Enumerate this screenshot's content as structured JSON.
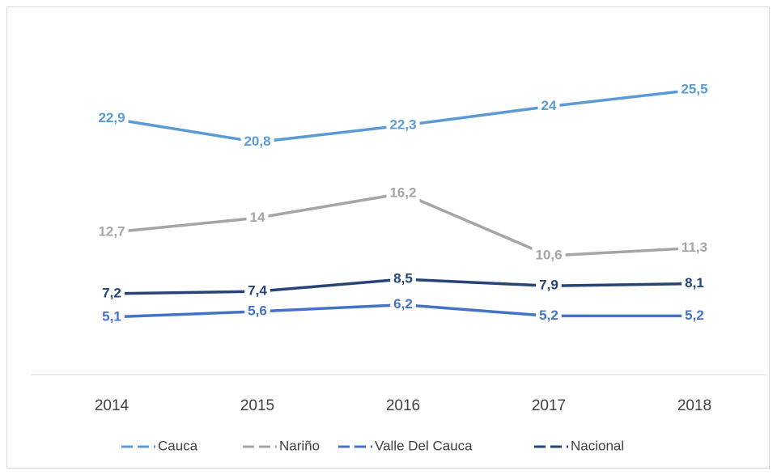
{
  "chart_data": {
    "type": "line",
    "categories": [
      "2014",
      "2015",
      "2016",
      "2017",
      "2018"
    ],
    "series": [
      {
        "name": "Cauca",
        "color": "#5b9bd5",
        "values": [
          22.9,
          20.8,
          22.3,
          24,
          25.5
        ],
        "value_labels": [
          "22,9",
          "20,8",
          "22,3",
          "24",
          "25,5"
        ]
      },
      {
        "name": "Nariño",
        "color": "#a5a5a5",
        "values": [
          12.7,
          14,
          16.2,
          10.6,
          11.3
        ],
        "value_labels": [
          "12,7",
          "14",
          "16,2",
          "10,6",
          "11,3"
        ]
      },
      {
        "name": "Valle Del Cauca",
        "color": "#4472c4",
        "values": [
          5.1,
          5.6,
          6.2,
          5.2,
          5.2
        ],
        "value_labels": [
          "5,1",
          "5,6",
          "6,2",
          "5,2",
          "5,2"
        ]
      },
      {
        "name": "Nacional",
        "color": "#264478",
        "values": [
          7.2,
          7.4,
          8.5,
          7.9,
          8.1
        ],
        "value_labels": [
          "7,2",
          "7,4",
          "8,5",
          "7,9",
          "8,1"
        ]
      }
    ],
    "ylim": [
      0,
      30
    ],
    "legend": "bottom"
  }
}
